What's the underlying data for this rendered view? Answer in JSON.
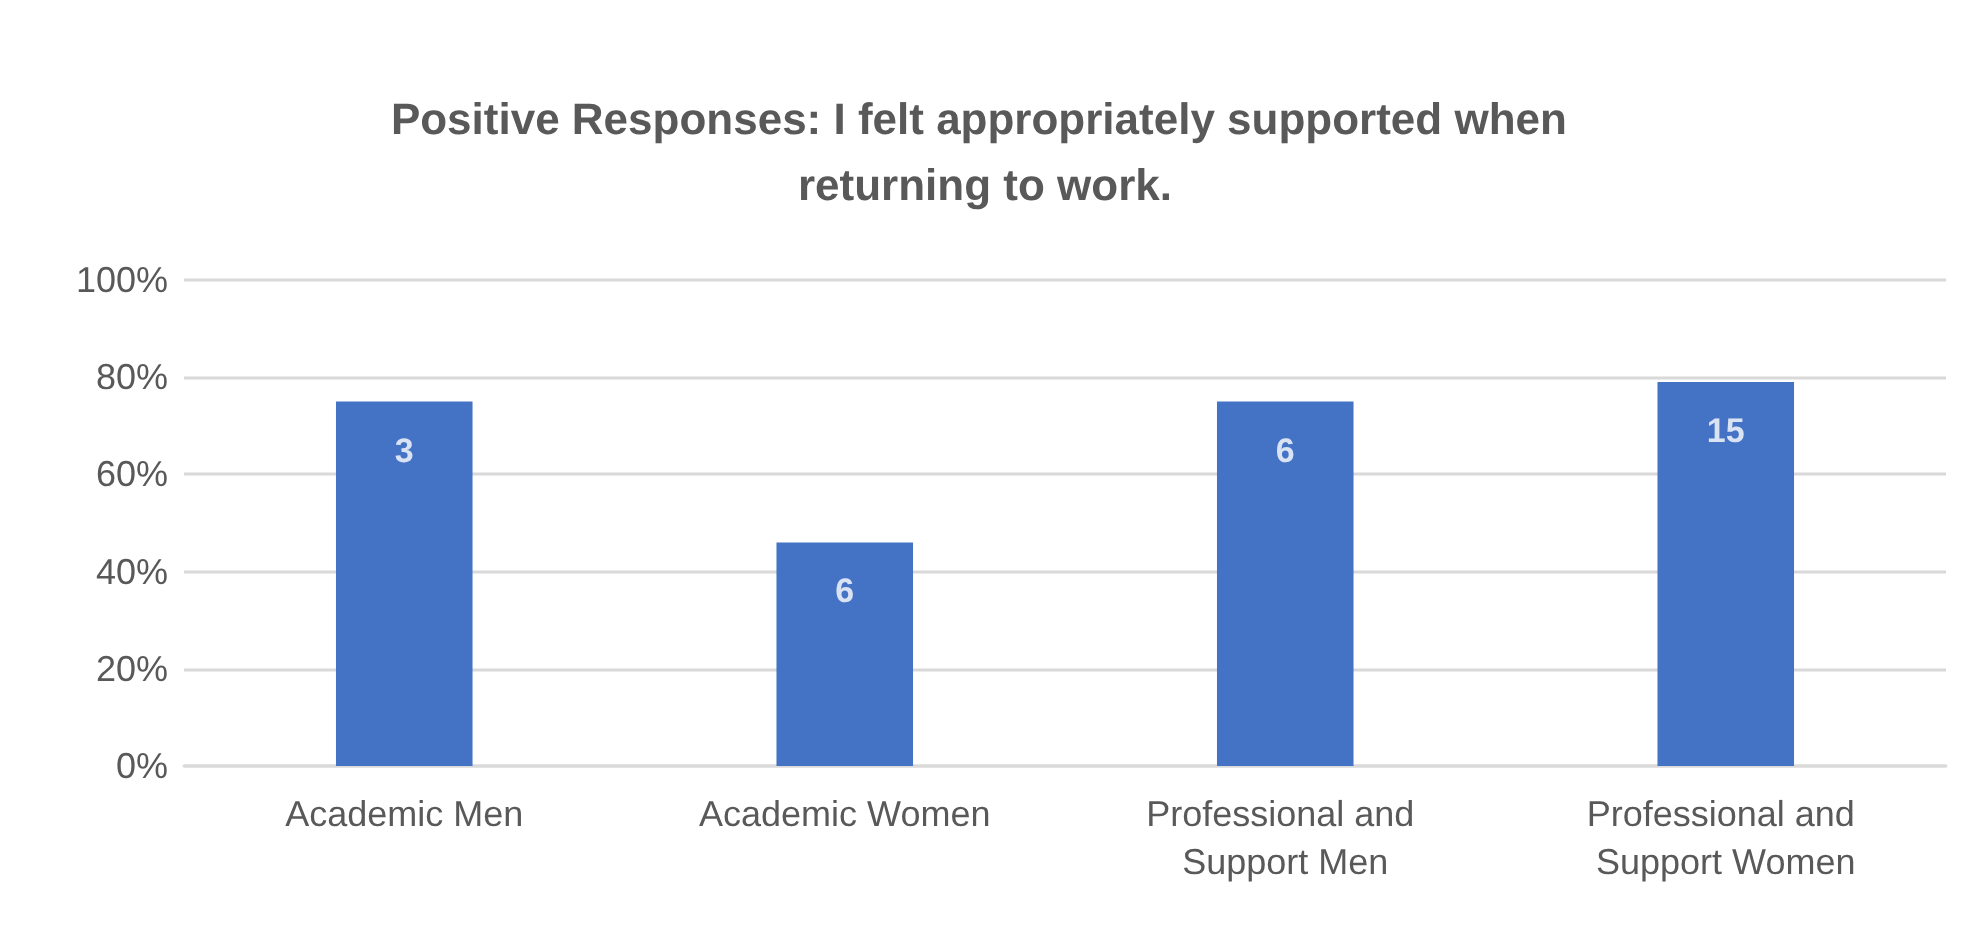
{
  "chart_data": {
    "type": "bar",
    "title": "Positive Responses: I felt appropriately supported when returning to work.",
    "categories": [
      "Academic Men",
      "Academic Women",
      "Professional and Support Men",
      "Professional and Support Women"
    ],
    "values": [
      75,
      46,
      75,
      79
    ],
    "color": "#4472c4",
    "annotations": [
      {
        "text": "3",
        "x": "Academic Men",
        "y": 75
      },
      {
        "text": "6",
        "x": "Academic Women",
        "y": 46
      },
      {
        "text": "6",
        "x": "Professional and Support Men",
        "y": 75
      },
      {
        "text": "15",
        "x": "Professional and Support Women",
        "y": 79
      }
    ],
    "ylim": [
      0,
      100
    ],
    "yticks": [
      {
        "value": 0,
        "label": "0%"
      },
      {
        "value": 20,
        "label": "20%"
      },
      {
        "value": 40,
        "label": "40%"
      },
      {
        "value": 60,
        "label": "60%"
      },
      {
        "value": 80,
        "label": "80%"
      },
      {
        "value": 100,
        "label": "100%"
      }
    ],
    "grid": "y"
  }
}
